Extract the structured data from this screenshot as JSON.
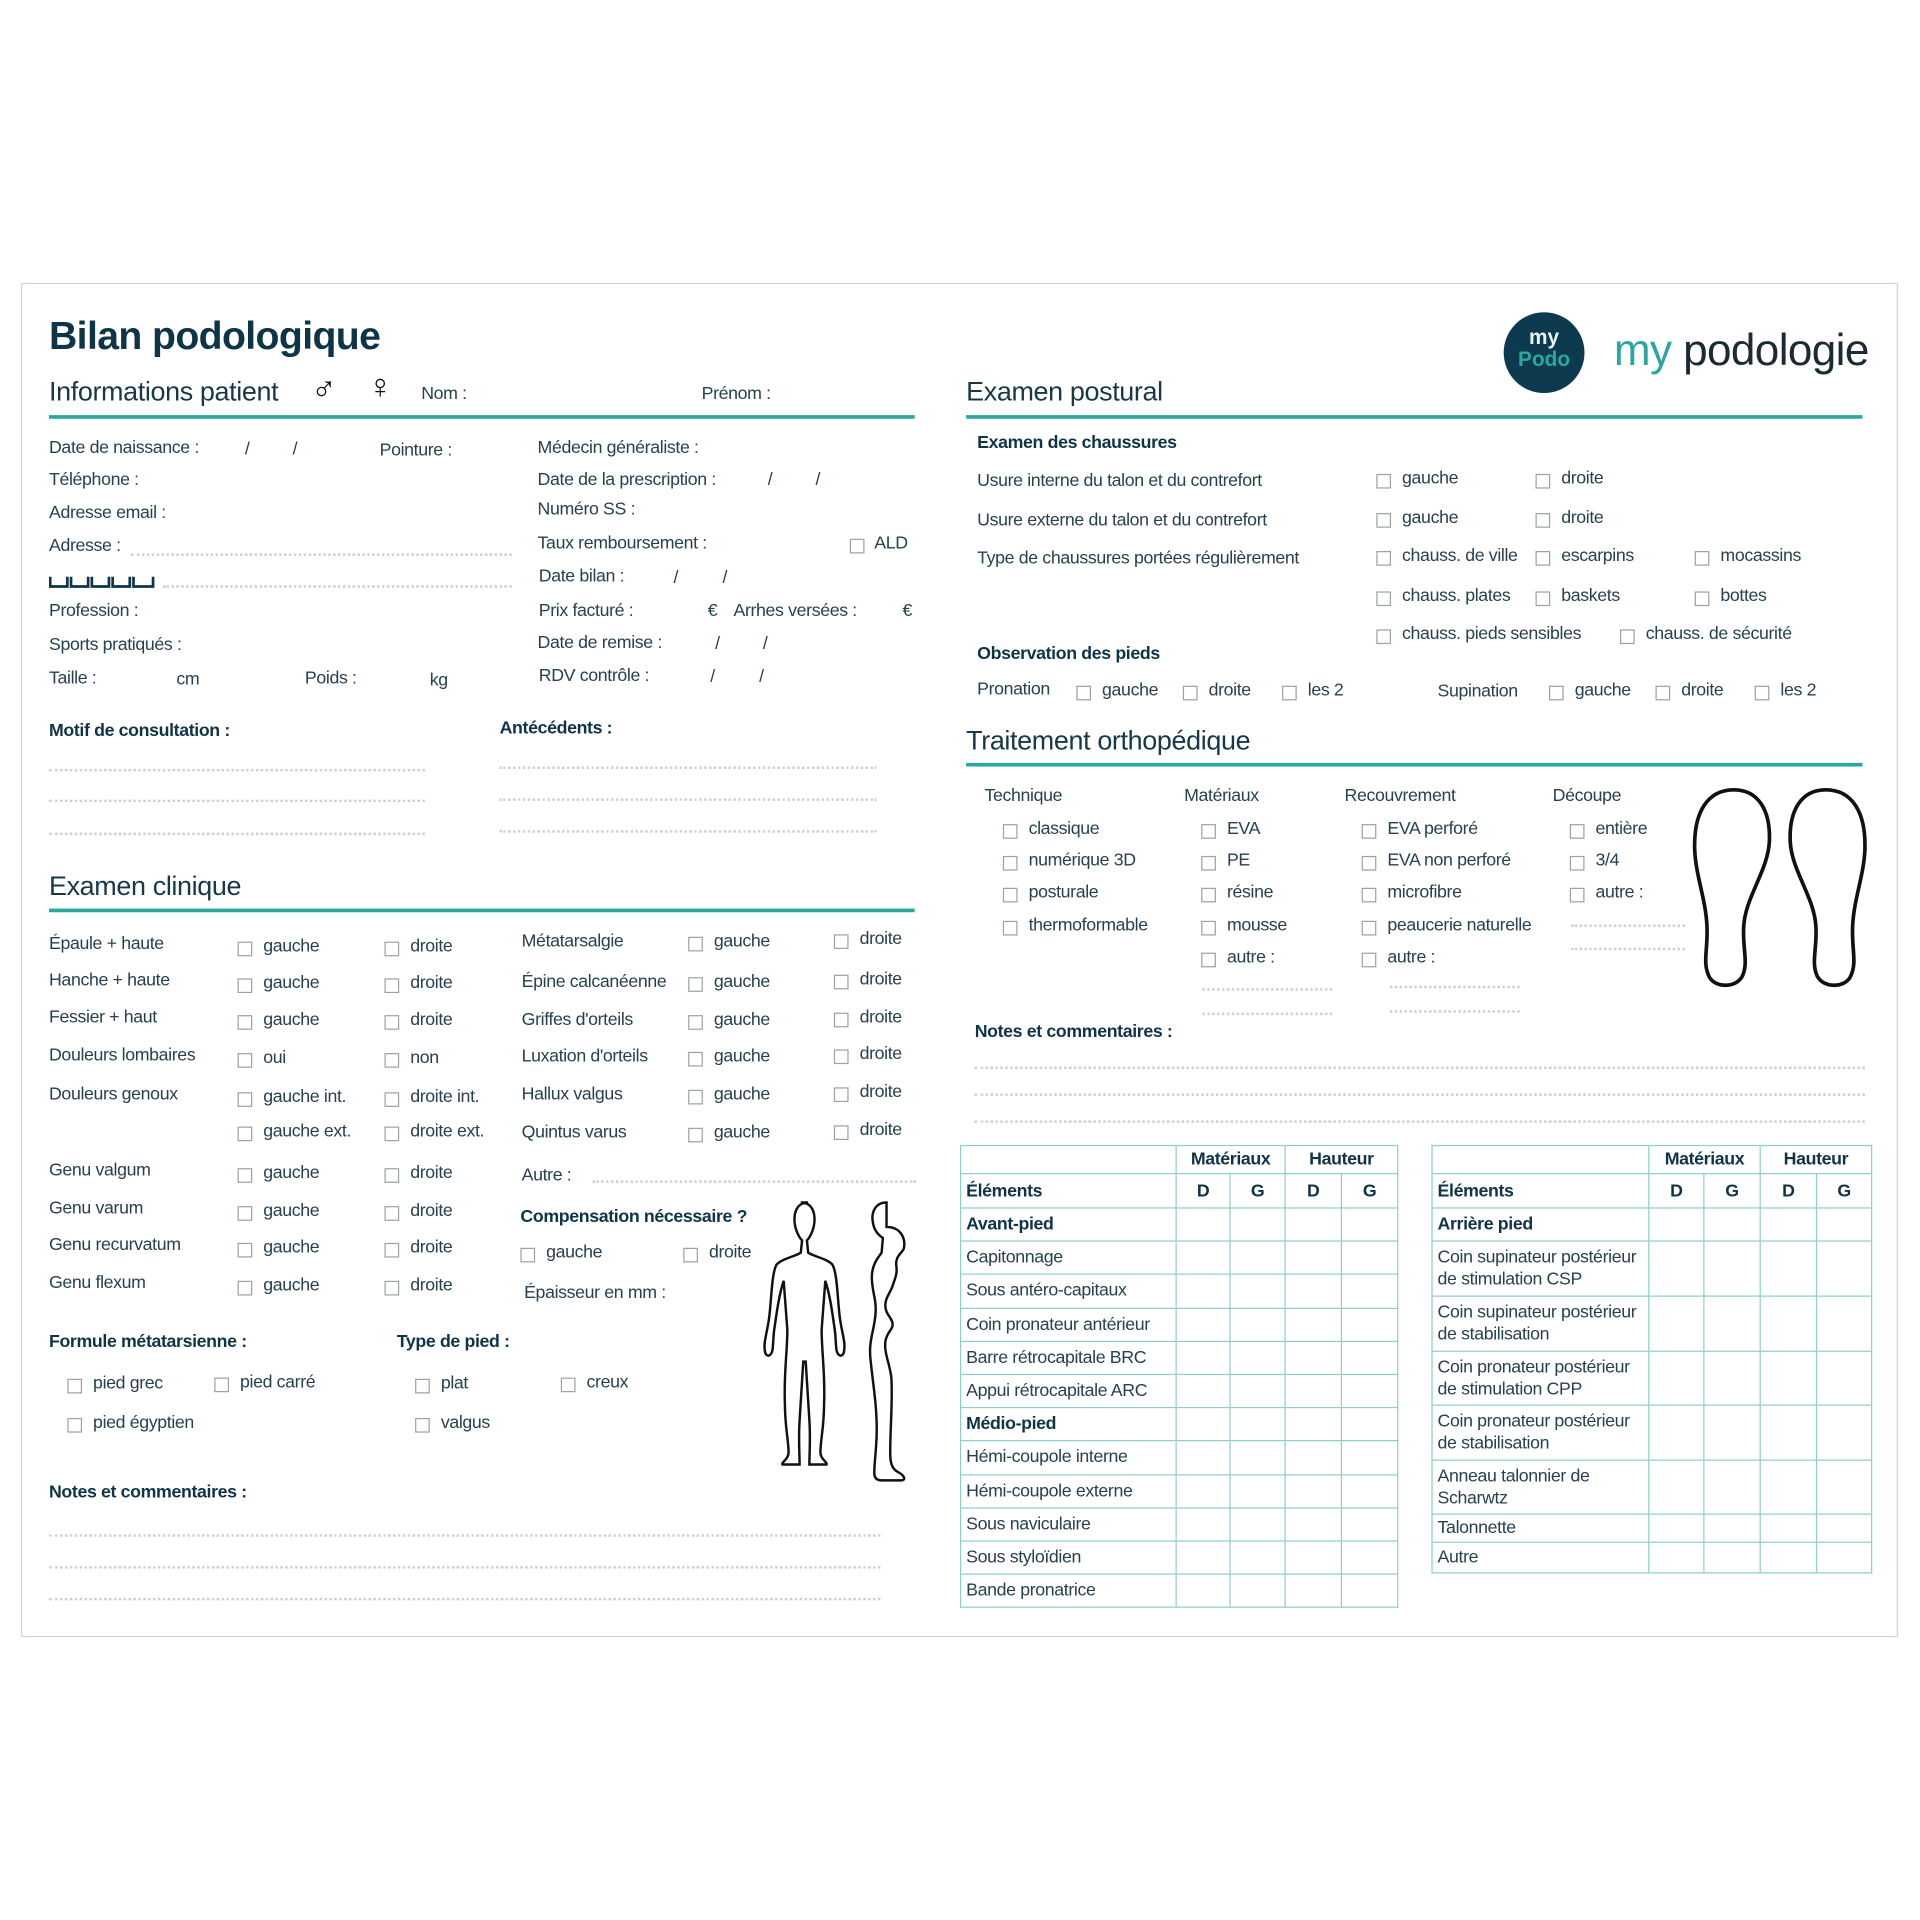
{
  "header": {
    "title": "Bilan podologique",
    "section_patient": "Informations patient",
    "male_symbol": "♂",
    "female_symbol": "♀",
    "nom": "Nom :",
    "prenom": "Prénom :"
  },
  "logo": {
    "badge_top": "my",
    "badge_bottom": "Podo",
    "brand_my": "my",
    "brand_rest": "podologie"
  },
  "colors": {
    "accent": "#2aa8a0",
    "navy": "#0e3a4f",
    "text": "#27414f"
  },
  "patient": {
    "birth_date": "Date de naissance :",
    "shoe_size": "Pointure :",
    "phone": "Téléphone :",
    "email": "Adresse email :",
    "address": "Adresse :",
    "profession": "Profession :",
    "sports": "Sports pratiqués :",
    "height": "Taille :",
    "height_unit": "cm",
    "weight": "Poids :",
    "weight_unit": "kg",
    "gp": "Médecin généraliste :",
    "prescription_date": "Date de la prescription :",
    "ssn": "Numéro SS :",
    "reimbursement": "Taux remboursement :",
    "ald": "ALD",
    "assessment_date": "Date bilan :",
    "price": "Prix facturé :",
    "currency": "€",
    "deposit": "Arrhes versées :",
    "delivery_date": "Date de remise :",
    "followup": "RDV contrôle :",
    "date_sep": "/"
  },
  "consultation": {
    "motif": "Motif de consultation :",
    "antecedents": "Antécédents :"
  },
  "clinical": {
    "title": "Examen clinique",
    "left_rows": [
      {
        "label": "Épaule + haute",
        "options": [
          "gauche",
          "droite"
        ]
      },
      {
        "label": "Hanche + haute",
        "options": [
          "gauche",
          "droite"
        ]
      },
      {
        "label": "Fessier + haut",
        "options": [
          "gauche",
          "droite"
        ]
      },
      {
        "label": "Douleurs lombaires",
        "options": [
          "oui",
          "non"
        ]
      },
      {
        "label": "Douleurs genoux",
        "options": [
          "gauche int.",
          "droite int."
        ]
      },
      {
        "label": "",
        "options": [
          "gauche ext.",
          "droite ext."
        ]
      },
      {
        "label": "Genu valgum",
        "options": [
          "gauche",
          "droite"
        ]
      },
      {
        "label": "Genu varum",
        "options": [
          "gauche",
          "droite"
        ]
      },
      {
        "label": "Genu recurvatum",
        "options": [
          "gauche",
          "droite"
        ]
      },
      {
        "label": "Genu flexum",
        "options": [
          "gauche",
          "droite"
        ]
      }
    ],
    "right_rows": [
      {
        "label": "Métatarsalgie",
        "options": [
          "gauche",
          "droite"
        ]
      },
      {
        "label": "Épine calcanéenne",
        "options": [
          "gauche",
          "droite"
        ]
      },
      {
        "label": "Griffes d'orteils",
        "options": [
          "gauche",
          "droite"
        ]
      },
      {
        "label": "Luxation d'orteils",
        "options": [
          "gauche",
          "droite"
        ]
      },
      {
        "label": "Hallux valgus",
        "options": [
          "gauche",
          "droite"
        ]
      },
      {
        "label": "Quintus varus",
        "options": [
          "gauche",
          "droite"
        ]
      }
    ],
    "other": "Autre :",
    "compensation": {
      "title": "Compensation nécessaire ?",
      "options": [
        "gauche",
        "droite"
      ]
    },
    "thickness": "Épaisseur en mm :",
    "metatarsal": {
      "title": "Formule métatarsienne :",
      "options": [
        "pied grec",
        "pied carré",
        "pied égyptien"
      ]
    },
    "foot_type": {
      "title": "Type de pied :",
      "options": [
        "plat",
        "creux",
        "valgus"
      ]
    },
    "notes": "Notes et commentaires :"
  },
  "postural": {
    "title": "Examen postural",
    "shoes": {
      "title": "Examen des chaussures",
      "rows": [
        {
          "label": "Usure interne du talon et du contrefort",
          "options": [
            "gauche",
            "droite"
          ]
        },
        {
          "label": "Usure externe du talon et du contrefort",
          "options": [
            "gauche",
            "droite"
          ]
        },
        {
          "label": "Type de chaussures portées régulièrement",
          "options": [
            "chauss. de ville",
            "escarpins",
            "mocassins"
          ]
        },
        {
          "label": "",
          "options": [
            "chauss. plates",
            "baskets",
            "bottes"
          ]
        },
        {
          "label": "",
          "options": [
            "chauss. pieds sensibles",
            "chauss. de sécurité"
          ]
        }
      ]
    },
    "observation": {
      "title": "Observation des pieds",
      "pronation": {
        "label": "Pronation",
        "options": [
          "gauche",
          "droite",
          "les 2"
        ]
      },
      "supination": {
        "label": "Supination",
        "options": [
          "gauche",
          "droite",
          "les 2"
        ]
      }
    }
  },
  "treatment": {
    "title": "Traitement orthopédique",
    "columns": [
      {
        "title": "Technique",
        "options": [
          "classique",
          "numérique 3D",
          "posturale",
          "thermoformable"
        ]
      },
      {
        "title": "Matériaux",
        "options": [
          "EVA",
          "PE",
          "résine",
          "mousse",
          "autre :"
        ]
      },
      {
        "title": "Recouvrement",
        "options": [
          "EVA perforé",
          "EVA non perforé",
          "microfibre",
          "peaucerie naturelle",
          "autre :"
        ]
      },
      {
        "title": "Découpe",
        "options": [
          "entière",
          "3/4",
          "autre :"
        ]
      }
    ],
    "notes": "Notes et commentaires :"
  },
  "tables": {
    "materials": "Matériaux",
    "height": "Hauteur",
    "elements": "Éléments",
    "d": "D",
    "g": "G",
    "front": [
      {
        "label": "Avant-pied",
        "bold": true
      },
      {
        "label": "Capitonnage"
      },
      {
        "label": "Sous antéro-capitaux"
      },
      {
        "label": "Coin pronateur antérieur"
      },
      {
        "label": "Barre rétrocapitale BRC"
      },
      {
        "label": "Appui rétrocapitale ARC"
      },
      {
        "label": "Médio-pied",
        "bold": true
      },
      {
        "label": "Hémi-coupole interne"
      },
      {
        "label": "Hémi-coupole externe"
      },
      {
        "label": "Sous naviculaire"
      },
      {
        "label": "Sous styloïdien"
      },
      {
        "label": "Bande pronatrice"
      }
    ],
    "rear": [
      {
        "label": "Arrière pied",
        "bold": true
      },
      {
        "label": "Coin supinateur postérieur de stimulation CSP"
      },
      {
        "label": "Coin supinateur postérieur de stabilisation"
      },
      {
        "label": "Coin pronateur postérieur de stimulation CPP"
      },
      {
        "label": "Coin pronateur postérieur de stabilisation"
      },
      {
        "label": "Anneau talonnier de Scharwtz"
      },
      {
        "label": "Talonnette"
      },
      {
        "label": "Autre"
      }
    ]
  }
}
